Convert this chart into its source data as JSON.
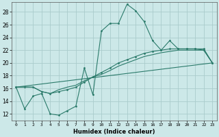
{
  "xlabel": "Humidex (Indice chaleur)",
  "bg_color": "#cce8e8",
  "grid_color": "#aacccc",
  "line_color": "#2a7a6a",
  "xlim": [
    -0.5,
    23.5
  ],
  "ylim": [
    11,
    29.5
  ],
  "yticks": [
    12,
    14,
    16,
    18,
    20,
    22,
    24,
    26,
    28
  ],
  "xticks": [
    0,
    1,
    2,
    3,
    4,
    5,
    6,
    7,
    8,
    9,
    10,
    11,
    12,
    13,
    14,
    15,
    16,
    17,
    18,
    19,
    20,
    21,
    22,
    23
  ],
  "line1_x": [
    0,
    1,
    2,
    3,
    4,
    5,
    6,
    7,
    8,
    9,
    10,
    11,
    12,
    13,
    14,
    15,
    16,
    17,
    18,
    19,
    20,
    21,
    22,
    23
  ],
  "line1_y": [
    16.2,
    12.8,
    14.8,
    15.2,
    12.0,
    11.8,
    12.5,
    13.2,
    19.2,
    15.0,
    25.0,
    26.2,
    26.2,
    29.2,
    28.2,
    26.5,
    23.5,
    22.0,
    23.5,
    22.2,
    22.2,
    22.2,
    22.0,
    20.0
  ],
  "line2_x": [
    0,
    1,
    2,
    3,
    4,
    5,
    6,
    7,
    8,
    9,
    10,
    11,
    12,
    13,
    14,
    15,
    16,
    17,
    18,
    19,
    20,
    21,
    22,
    23
  ],
  "line2_y": [
    16.2,
    16.2,
    16.2,
    15.5,
    15.2,
    15.5,
    15.8,
    16.2,
    17.0,
    17.8,
    18.5,
    19.2,
    20.0,
    20.5,
    21.0,
    21.5,
    21.8,
    22.0,
    22.2,
    22.2,
    22.2,
    22.2,
    22.2,
    20.0
  ],
  "line3_x": [
    0,
    1,
    2,
    3,
    4,
    5,
    6,
    7,
    8,
    9,
    10,
    11,
    12,
    13,
    14,
    15,
    16,
    17,
    18,
    19,
    20,
    21,
    22,
    23
  ],
  "line3_y": [
    16.2,
    16.2,
    16.2,
    15.5,
    15.2,
    15.8,
    16.2,
    16.5,
    17.2,
    17.8,
    18.2,
    18.8,
    19.5,
    20.0,
    20.5,
    21.0,
    21.3,
    21.6,
    21.8,
    22.0,
    22.0,
    22.0,
    22.0,
    20.0
  ],
  "line4_x": [
    0,
    23
  ],
  "line4_y": [
    16.2,
    20.0
  ]
}
